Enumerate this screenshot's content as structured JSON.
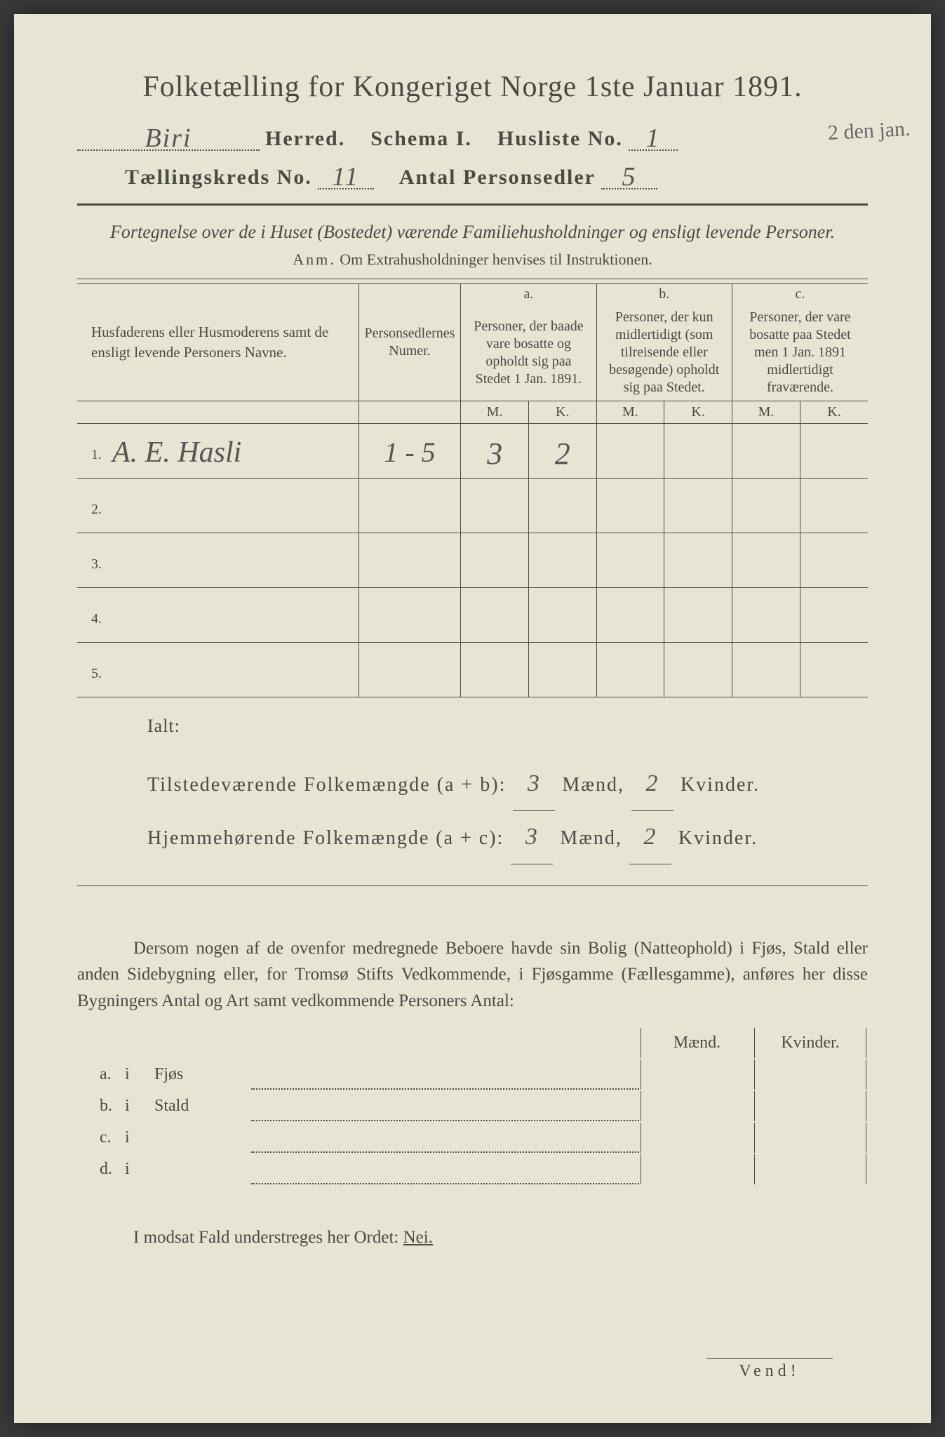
{
  "title": "Folketælling for Kongeriget Norge 1ste Januar 1891.",
  "header": {
    "herred_value": "Biri",
    "herred_label": "Herred.",
    "schema_label": "Schema I.",
    "husliste_label": "Husliste No.",
    "husliste_value": "1",
    "kreds_label": "Tællingskreds No.",
    "kreds_value": "11",
    "antal_label": "Antal Personsedler",
    "antal_value": "5"
  },
  "margin_note": "2 den jan.",
  "subtitle": "Fortegnelse over de i Huset (Bostedet) værende Familiehusholdninger og ensligt levende Personer.",
  "anm": {
    "label": "Anm.",
    "text": "Om Extrahusholdninger henvises til Instruktionen."
  },
  "table": {
    "col1": "Husfaderens eller Husmoderens samt de ensligt levende Personers Navne.",
    "col2": "Personsedlernes Numer.",
    "col_a_tag": "a.",
    "col_a": "Personer, der baade vare bosatte og opholdt sig paa Stedet 1 Jan. 1891.",
    "col_b_tag": "b.",
    "col_b": "Personer, der kun midlertidigt (som tilreisende eller besøgende) opholdt sig paa Stedet.",
    "col_c_tag": "c.",
    "col_c": "Personer, der vare bosatte paa Stedet men 1 Jan. 1891 midlertidigt fraværende.",
    "m": "M.",
    "k": "K.",
    "rows": [
      {
        "n": "1.",
        "name": "A. E. Hasli",
        "num": "1 - 5",
        "am": "3",
        "ak": "2",
        "bm": "",
        "bk": "",
        "cm": "",
        "ck": ""
      },
      {
        "n": "2.",
        "name": "",
        "num": "",
        "am": "",
        "ak": "",
        "bm": "",
        "bk": "",
        "cm": "",
        "ck": ""
      },
      {
        "n": "3.",
        "name": "",
        "num": "",
        "am": "",
        "ak": "",
        "bm": "",
        "bk": "",
        "cm": "",
        "ck": ""
      },
      {
        "n": "4.",
        "name": "",
        "num": "",
        "am": "",
        "ak": "",
        "bm": "",
        "bk": "",
        "cm": "",
        "ck": ""
      },
      {
        "n": "5.",
        "name": "",
        "num": "",
        "am": "",
        "ak": "",
        "bm": "",
        "bk": "",
        "cm": "",
        "ck": ""
      }
    ]
  },
  "totals": {
    "ialt": "Ialt:",
    "line1_a": "Tilstedeværende Folkemængde (a + b):",
    "line1_m": "3",
    "line1_mlabel": "Mænd,",
    "line1_k": "2",
    "line1_klabel": "Kvinder.",
    "line2_a": "Hjemmehørende Folkemængde (a + c):",
    "line2_m": "3",
    "line2_k": "2"
  },
  "para": "Dersom nogen af de ovenfor medregnede Beboere havde sin Bolig (Natteophold) i Fjøs, Stald eller anden Sidebygning eller, for Tromsø Stifts Vedkommende, i Fjøsgamme (Fællesgamme), anføres her disse Bygningers Antal og Art samt vedkommende Personers Antal:",
  "side": {
    "maend": "Mænd.",
    "kvinder": "Kvinder.",
    "rows": [
      {
        "l": "a.",
        "i": "i",
        "label": "Fjøs"
      },
      {
        "l": "b.",
        "i": "i",
        "label": "Stald"
      },
      {
        "l": "c.",
        "i": "i",
        "label": ""
      },
      {
        "l": "d.",
        "i": "i",
        "label": ""
      }
    ]
  },
  "modsat": {
    "pre": "I modsat Fald understreges her Ordet: ",
    "nei": "Nei."
  },
  "vend": "Vend!"
}
